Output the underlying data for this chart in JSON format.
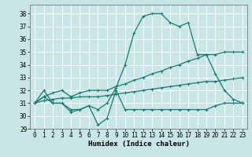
{
  "title": "",
  "xlabel": "Humidex (Indice chaleur)",
  "ylabel": "",
  "xlim": [
    -0.5,
    23.5
  ],
  "ylim": [
    29,
    38.7
  ],
  "yticks": [
    29,
    30,
    31,
    32,
    33,
    34,
    35,
    36,
    37,
    38
  ],
  "xticks": [
    0,
    1,
    2,
    3,
    4,
    5,
    6,
    7,
    8,
    9,
    10,
    11,
    12,
    13,
    14,
    15,
    16,
    17,
    18,
    19,
    20,
    21,
    22,
    23
  ],
  "bg_color": "#c8e6e6",
  "grid_color": "#ffffff",
  "line_color": "#1a7a6e",
  "line1_x": [
    0,
    1,
    2,
    3,
    4,
    5,
    6,
    7,
    8,
    9,
    10,
    11,
    12,
    13,
    14,
    15,
    16,
    17,
    18,
    19,
    20,
    21,
    22,
    23
  ],
  "line1_y": [
    31.0,
    31.5,
    31.0,
    31.0,
    30.5,
    30.5,
    30.8,
    29.3,
    29.8,
    32.0,
    30.5,
    30.5,
    30.5,
    30.5,
    30.5,
    30.5,
    30.5,
    30.5,
    30.5,
    30.5,
    30.8,
    31.0,
    31.0,
    31.0
  ],
  "line2_x": [
    0,
    1,
    2,
    3,
    4,
    5,
    6,
    7,
    8,
    9,
    10,
    11,
    12,
    13,
    14,
    15,
    16,
    17,
    18,
    19,
    20,
    21,
    22,
    23
  ],
  "line2_y": [
    31.0,
    32.0,
    31.0,
    31.0,
    30.3,
    30.5,
    30.8,
    30.5,
    31.0,
    32.2,
    34.0,
    36.5,
    37.8,
    38.0,
    38.0,
    37.3,
    37.0,
    37.3,
    34.8,
    34.8,
    33.3,
    32.0,
    31.3,
    31.0
  ],
  "line3_x": [
    0,
    1,
    2,
    3,
    4,
    5,
    6,
    7,
    8,
    9,
    10,
    11,
    12,
    13,
    14,
    15,
    16,
    17,
    18,
    19,
    20,
    21,
    22,
    23
  ],
  "line3_y": [
    31.0,
    31.5,
    31.8,
    32.0,
    31.5,
    31.8,
    32.0,
    32.0,
    32.0,
    32.3,
    32.5,
    32.8,
    33.0,
    33.3,
    33.5,
    33.8,
    34.0,
    34.3,
    34.5,
    34.8,
    34.8,
    35.0,
    35.0,
    35.0
  ],
  "line4_x": [
    0,
    1,
    2,
    3,
    4,
    5,
    6,
    7,
    8,
    9,
    10,
    11,
    12,
    13,
    14,
    15,
    16,
    17,
    18,
    19,
    20,
    21,
    22,
    23
  ],
  "line4_y": [
    31.0,
    31.2,
    31.3,
    31.4,
    31.4,
    31.5,
    31.5,
    31.5,
    31.6,
    31.7,
    31.8,
    31.9,
    32.0,
    32.1,
    32.2,
    32.3,
    32.4,
    32.5,
    32.6,
    32.7,
    32.7,
    32.8,
    32.9,
    33.0
  ],
  "marker": "+",
  "markersize": 3,
  "markeredgewidth": 0.7,
  "linewidth": 0.9,
  "tick_fontsize": 5.5,
  "label_fontsize": 6.5
}
